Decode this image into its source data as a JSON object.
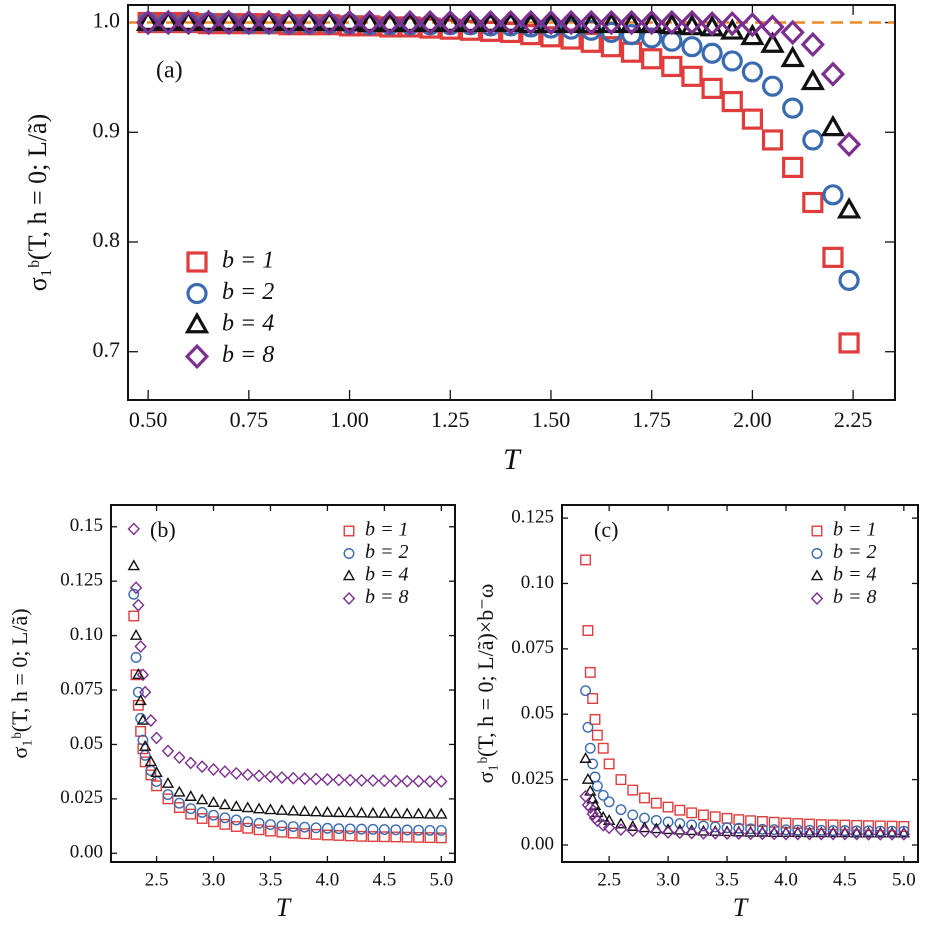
{
  "chart_data": [
    {
      "type": "scatter",
      "annotation": "(a)",
      "xlabel": "T",
      "ylabel": "σ₁ᵇ(T, h = 0; L/ã)",
      "xlim": [
        0.45,
        2.354
      ],
      "ylim": [
        0.656,
        1.016
      ],
      "xticks": [
        {
          "value": 0.5,
          "label": "0.50"
        },
        {
          "value": 0.75,
          "label": "0.75"
        },
        {
          "value": 1,
          "label": "1.00"
        },
        {
          "value": 1.25,
          "label": "1.25"
        },
        {
          "value": 1.5,
          "label": "1.50"
        },
        {
          "value": 1.75,
          "label": "1.75"
        },
        {
          "value": 2,
          "label": "2.00"
        },
        {
          "value": 2.25,
          "label": "2.25"
        }
      ],
      "yticks": [
        0.7,
        0.8,
        0.9,
        {
          "value": 1,
          "label": "1.0"
        }
      ],
      "hline": {
        "value": 1,
        "color": "#f08a24"
      },
      "legend": "lower left",
      "x": [
        0.5,
        0.55,
        0.6,
        0.65,
        0.7,
        0.75,
        0.8,
        0.85,
        0.9,
        0.95,
        1.0,
        1.05,
        1.1,
        1.15,
        1.2,
        1.25,
        1.3,
        1.35,
        1.4,
        1.45,
        1.5,
        1.55,
        1.6,
        1.65,
        1.7,
        1.75,
        1.8,
        1.85,
        1.9,
        1.95,
        2.0,
        2.05,
        2.1,
        2.15,
        2.2,
        2.24
      ],
      "series": [
        {
          "name": "b = 1",
          "color": "#e03c3c",
          "marker": "square",
          "values": [
            1.0,
            1.0,
            1.0,
            0.999,
            0.999,
            0.999,
            0.999,
            0.998,
            0.998,
            0.998,
            0.997,
            0.997,
            0.996,
            0.996,
            0.995,
            0.994,
            0.993,
            0.992,
            0.991,
            0.989,
            0.987,
            0.985,
            0.982,
            0.978,
            0.973,
            0.967,
            0.96,
            0.951,
            0.94,
            0.928,
            0.912,
            0.893,
            0.868,
            0.836,
            0.786,
            0.708
          ]
        },
        {
          "name": "b = 2",
          "color": "#3a6ab0",
          "marker": "circle",
          "values": [
            1.0,
            1.0,
            1.0,
            1.0,
            1.0,
            0.999,
            0.999,
            0.999,
            0.999,
            0.999,
            0.999,
            0.998,
            0.998,
            0.998,
            0.998,
            0.998,
            0.998,
            0.997,
            0.997,
            0.996,
            0.995,
            0.994,
            0.993,
            0.991,
            0.989,
            0.986,
            0.983,
            0.978,
            0.972,
            0.965,
            0.955,
            0.942,
            0.922,
            0.893,
            0.843,
            0.765
          ]
        },
        {
          "name": "b = 4",
          "color": "#111111",
          "marker": "triangle",
          "values": [
            1.0,
            1.0,
            1.0,
            1.0,
            1.0,
            1.0,
            1.0,
            1.0,
            1.0,
            1.0,
            1.0,
            0.999,
            0.999,
            0.999,
            0.999,
            0.999,
            0.999,
            0.999,
            0.999,
            0.998,
            0.998,
            0.998,
            0.998,
            0.998,
            0.998,
            0.998,
            0.997,
            0.996,
            0.995,
            0.992,
            0.987,
            0.98,
            0.967,
            0.946,
            0.904,
            0.829
          ]
        },
        {
          "name": "b = 8",
          "color": "#7b2f8e",
          "marker": "diamond",
          "values": [
            1.0,
            1.0,
            1.0,
            1.0,
            1.0,
            1.0,
            1.0,
            1.0,
            1.0,
            1.0,
            1.0,
            1.0,
            1.0,
            1.0,
            1.0,
            1.0,
            1.0,
            1.0,
            1.0,
            1.0,
            1.0,
            1.0,
            1.0,
            1.0,
            1.0,
            1.0,
            1.0,
            1.0,
            0.999,
            0.999,
            0.998,
            0.996,
            0.991,
            0.98,
            0.953,
            0.889
          ]
        }
      ]
    },
    {
      "type": "scatter",
      "annotation": "(b)",
      "xlabel": "T",
      "ylabel": "σ₁ᵇ(T, h = 0; L/ã)",
      "xlim": [
        2.1,
        5.12
      ],
      "ylim": [
        -0.004,
        0.16
      ],
      "xticks": [
        2.5,
        {
          "value": 3,
          "label": "3.0"
        },
        3.5,
        {
          "value": 4,
          "label": "4.0"
        },
        4.5,
        {
          "value": 5,
          "label": "5.0"
        }
      ],
      "yticks": [
        {
          "value": 0,
          "label": "0.00"
        },
        0.025,
        {
          "value": 0.05,
          "label": "0.05"
        },
        0.075,
        {
          "value": 0.1,
          "label": "0.10"
        },
        0.125,
        0.15
      ],
      "legend": "upper right",
      "x": [
        2.3,
        2.32,
        2.34,
        2.36,
        2.38,
        2.4,
        2.45,
        2.5,
        2.6,
        2.7,
        2.8,
        2.9,
        3.0,
        3.1,
        3.2,
        3.3,
        3.4,
        3.5,
        3.6,
        3.7,
        3.8,
        3.9,
        4.0,
        4.1,
        4.2,
        4.3,
        4.4,
        4.5,
        4.6,
        4.7,
        4.8,
        4.9,
        5.0
      ],
      "series": [
        {
          "name": "b = 1",
          "color": "#e03c3c",
          "marker": "square",
          "values": [
            0.109,
            0.082,
            0.068,
            0.056,
            0.048,
            0.042,
            0.036,
            0.031,
            0.025,
            0.021,
            0.018,
            0.016,
            0.0145,
            0.0133,
            0.0123,
            0.0115,
            0.0108,
            0.0102,
            0.0097,
            0.0093,
            0.009,
            0.0087,
            0.0084,
            0.0082,
            0.008,
            0.0078,
            0.0077,
            0.0076,
            0.0075,
            0.0074,
            0.0073,
            0.0072,
            0.0071
          ]
        },
        {
          "name": "b = 2",
          "color": "#3a6ab0",
          "marker": "circle",
          "values": [
            0.119,
            0.09,
            0.074,
            0.062,
            0.052,
            0.045,
            0.038,
            0.033,
            0.027,
            0.023,
            0.0205,
            0.0188,
            0.0175,
            0.0163,
            0.0153,
            0.0145,
            0.0138,
            0.0132,
            0.0127,
            0.0123,
            0.012,
            0.0117,
            0.0115,
            0.0113,
            0.0112,
            0.0111,
            0.011,
            0.0109,
            0.0108,
            0.0107,
            0.0106,
            0.0105,
            0.0105
          ]
        },
        {
          "name": "b = 4",
          "color": "#111111",
          "marker": "triangle",
          "values": [
            0.132,
            0.1,
            0.082,
            0.07,
            0.061,
            0.049,
            0.042,
            0.037,
            0.032,
            0.028,
            0.026,
            0.0245,
            0.0232,
            0.0222,
            0.0214,
            0.0208,
            0.0203,
            0.0199,
            0.0196,
            0.0193,
            0.0191,
            0.0189,
            0.0187,
            0.0186,
            0.0185,
            0.0184,
            0.0183,
            0.0182,
            0.0181,
            0.018,
            0.018,
            0.0179,
            0.0179
          ]
        },
        {
          "name": "b = 8",
          "color": "#7b2f8e",
          "marker": "diamond",
          "values": [
            0.149,
            0.122,
            0.114,
            0.095,
            0.082,
            0.074,
            0.061,
            0.053,
            0.047,
            0.044,
            0.0415,
            0.0398,
            0.0385,
            0.0375,
            0.0367,
            0.0361,
            0.0356,
            0.0352,
            0.0348,
            0.0345,
            0.0343,
            0.0341,
            0.0339,
            0.0337,
            0.0336,
            0.0335,
            0.0334,
            0.0333,
            0.0332,
            0.0331,
            0.0331,
            0.033,
            0.033
          ]
        }
      ]
    },
    {
      "type": "scatter",
      "annotation": "(c)",
      "xlabel": "T",
      "ylabel": "σ₁ᵇ(T, h = 0; L/ã)×b⁻ω",
      "xlim": [
        2.1,
        5.12
      ],
      "ylim": [
        -0.0065,
        0.13
      ],
      "xticks": [
        2.5,
        {
          "value": 3,
          "label": "3.0"
        },
        3.5,
        {
          "value": 4,
          "label": "4.0"
        },
        4.5,
        {
          "value": 5,
          "label": "5.0"
        }
      ],
      "yticks": [
        {
          "value": 0,
          "label": "0.00"
        },
        0.025,
        {
          "value": 0.05,
          "label": "0.05"
        },
        0.075,
        {
          "value": 0.1,
          "label": "0.10"
        },
        0.125
      ],
      "legend": "upper right",
      "x": [
        2.3,
        2.32,
        2.34,
        2.36,
        2.38,
        2.4,
        2.45,
        2.5,
        2.6,
        2.7,
        2.8,
        2.9,
        3.0,
        3.1,
        3.2,
        3.3,
        3.4,
        3.5,
        3.6,
        3.7,
        3.8,
        3.9,
        4.0,
        4.1,
        4.2,
        4.3,
        4.4,
        4.5,
        4.6,
        4.7,
        4.8,
        4.9,
        5.0
      ],
      "series": [
        {
          "name": "b = 1",
          "color": "#e03c3c",
          "marker": "square",
          "values": [
            0.109,
            0.082,
            0.066,
            0.056,
            0.048,
            0.042,
            0.037,
            0.031,
            0.025,
            0.021,
            0.018,
            0.016,
            0.0145,
            0.0133,
            0.0123,
            0.0115,
            0.0108,
            0.0102,
            0.0097,
            0.0093,
            0.009,
            0.0087,
            0.0084,
            0.0082,
            0.008,
            0.0078,
            0.0077,
            0.0076,
            0.0075,
            0.0074,
            0.0073,
            0.0072,
            0.0071
          ]
        },
        {
          "name": "b = 2",
          "color": "#3a6ab0",
          "marker": "circle",
          "values": [
            0.059,
            0.045,
            0.037,
            0.031,
            0.026,
            0.0225,
            0.019,
            0.0165,
            0.0135,
            0.0115,
            0.0103,
            0.0094,
            0.0088,
            0.0082,
            0.0077,
            0.0073,
            0.0069,
            0.0066,
            0.0064,
            0.0062,
            0.006,
            0.0059,
            0.0058,
            0.0057,
            0.0056,
            0.0056,
            0.0055,
            0.0055,
            0.0054,
            0.0054,
            0.0053,
            0.0053,
            0.0053
          ]
        },
        {
          "name": "b = 4",
          "color": "#111111",
          "marker": "triangle",
          "values": [
            0.033,
            0.025,
            0.0205,
            0.0175,
            0.015,
            0.0123,
            0.0105,
            0.0093,
            0.008,
            0.007,
            0.0065,
            0.0061,
            0.0058,
            0.0056,
            0.0054,
            0.0052,
            0.0051,
            0.005,
            0.0049,
            0.0048,
            0.0048,
            0.0047,
            0.0047,
            0.0047,
            0.0046,
            0.0046,
            0.0046,
            0.0046,
            0.0045,
            0.0045,
            0.0045,
            0.0045,
            0.0045
          ]
        },
        {
          "name": "b = 8",
          "color": "#7b2f8e",
          "marker": "diamond",
          "values": [
            0.0186,
            0.0153,
            0.0143,
            0.0119,
            0.0103,
            0.0093,
            0.0076,
            0.0066,
            0.0059,
            0.0055,
            0.0052,
            0.005,
            0.0048,
            0.0047,
            0.0046,
            0.0045,
            0.0045,
            0.0044,
            0.0044,
            0.0043,
            0.0043,
            0.0043,
            0.0042,
            0.0042,
            0.0042,
            0.0042,
            0.0042,
            0.0042,
            0.0042,
            0.0041,
            0.0041,
            0.0041,
            0.0041
          ]
        }
      ]
    }
  ]
}
